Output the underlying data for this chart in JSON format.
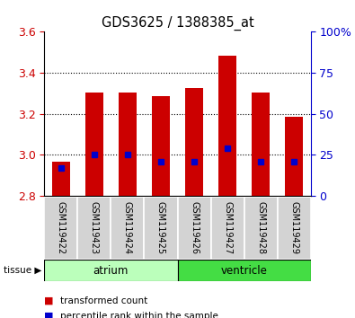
{
  "title": "GDS3625 / 1388385_at",
  "samples": [
    "GSM119422",
    "GSM119423",
    "GSM119424",
    "GSM119425",
    "GSM119426",
    "GSM119427",
    "GSM119428",
    "GSM119429"
  ],
  "transformed_count": [
    2.965,
    3.305,
    3.305,
    3.285,
    3.325,
    3.485,
    3.305,
    3.185
  ],
  "bar_bottom": 2.8,
  "percentile_rank_values": [
    2.935,
    3.0,
    3.0,
    2.965,
    2.965,
    3.03,
    2.965,
    2.965
  ],
  "ylim": [
    2.8,
    3.6
  ],
  "yticks_left": [
    2.8,
    3.0,
    3.2,
    3.4,
    3.6
  ],
  "yticks_right": [
    0,
    25,
    50,
    75,
    100
  ],
  "bar_color": "#cc0000",
  "marker_color": "#0000cc",
  "tissue_groups": [
    {
      "label": "atrium",
      "start": 0,
      "end": 4,
      "color": "#bbffbb"
    },
    {
      "label": "ventricle",
      "start": 4,
      "end": 8,
      "color": "#44dd44"
    }
  ],
  "sample_box_color": "#d3d3d3",
  "tissue_label": "tissue",
  "legend_items": [
    {
      "label": "transformed count",
      "color": "#cc0000"
    },
    {
      "label": "percentile rank within the sample",
      "color": "#0000cc"
    }
  ],
  "grid_yticks": [
    3.0,
    3.2,
    3.4
  ],
  "tick_label_color_left": "#cc0000",
  "tick_label_color_right": "#0000cc"
}
